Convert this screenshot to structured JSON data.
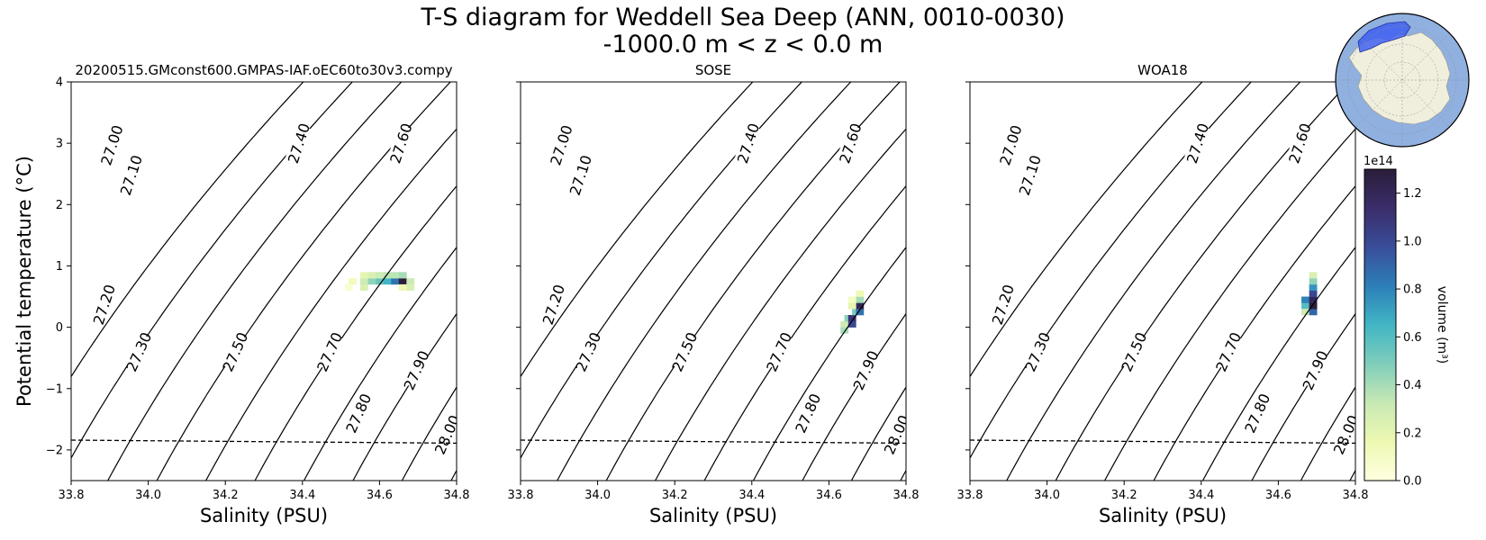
{
  "title": {
    "line1": "T-S diagram for Weddell Sea Deep (ANN, 0010-0030)",
    "line2": "-1000.0 m < z < 0.0 m"
  },
  "colorbar": {
    "label": "volume (m³)",
    "exponent_label": "1e14",
    "ticks": [
      "0.0",
      "0.2",
      "0.4",
      "0.6",
      "0.8",
      "1.0",
      "1.2"
    ],
    "tick_values": [
      0.0,
      0.2,
      0.4,
      0.6,
      0.8,
      1.0,
      1.2
    ],
    "range": [
      0,
      1.3
    ],
    "colors": [
      "#ffffe0",
      "#edf8b1",
      "#c7e9b4",
      "#7fcdbb",
      "#41b6c4",
      "#2c7fb8",
      "#3a4d9a",
      "#3b2d6a",
      "#2a1e3a"
    ]
  },
  "inset_map": {
    "ocean_color": "#90b0e0",
    "land_color": "#f0eedc",
    "region_color": "#4060f0"
  },
  "chart_data": [
    {
      "type": "heatmap",
      "title": "20200515.GMconst600.GMPAS-IAF.oEC60to30v3.compy",
      "xlabel": "Salinity (PSU)",
      "ylabel": "Potential temperature (°C)",
      "xlim": [
        33.8,
        34.8
      ],
      "ylim": [
        -2.5,
        4
      ],
      "xticks": [
        "33.8",
        "34.0",
        "34.2",
        "34.4",
        "34.6",
        "34.8"
      ],
      "yticks": [
        "−2",
        "−1",
        "0",
        "1",
        "2",
        "3",
        "4"
      ],
      "freezing_line": {
        "x": [
          33.8,
          34.8
        ],
        "y": [
          -1.84,
          -1.89
        ]
      },
      "density_contours": [
        {
          "label": "27.00",
          "label_at": [
            33.905,
            2.97
          ]
        },
        {
          "label": "27.10",
          "label_at": [
            33.955,
            2.48
          ]
        },
        {
          "label": "27.20",
          "label_at": [
            33.885,
            0.37
          ]
        },
        {
          "label": "27.30",
          "label_at": [
            33.975,
            -0.4
          ]
        },
        {
          "label": "27.40",
          "label_at": [
            34.39,
            3.0
          ]
        },
        {
          "label": "27.50",
          "label_at": [
            34.225,
            -0.4
          ]
        },
        {
          "label": "27.60",
          "label_at": [
            34.655,
            3.0
          ]
        },
        {
          "label": "27.70",
          "label_at": [
            34.47,
            -0.4
          ]
        },
        {
          "label": "27.80",
          "label_at": [
            34.545,
            -1.4
          ]
        },
        {
          "label": "27.90",
          "label_at": [
            34.695,
            -0.7
          ]
        },
        {
          "label": "28.00",
          "label_at": [
            34.775,
            -1.75
          ]
        }
      ],
      "cells": [
        {
          "x": 34.52,
          "y": 0.65,
          "v": 0.05
        },
        {
          "x": 34.53,
          "y": 0.75,
          "v": 0.12
        },
        {
          "x": 34.56,
          "y": 0.65,
          "v": 0.25
        },
        {
          "x": 34.56,
          "y": 0.75,
          "v": 0.3
        },
        {
          "x": 34.56,
          "y": 0.85,
          "v": 0.2
        },
        {
          "x": 34.58,
          "y": 0.75,
          "v": 0.45
        },
        {
          "x": 34.58,
          "y": 0.85,
          "v": 0.25
        },
        {
          "x": 34.6,
          "y": 0.75,
          "v": 0.55
        },
        {
          "x": 34.6,
          "y": 0.85,
          "v": 0.3
        },
        {
          "x": 34.62,
          "y": 0.75,
          "v": 0.65
        },
        {
          "x": 34.62,
          "y": 0.85,
          "v": 0.35
        },
        {
          "x": 34.64,
          "y": 0.75,
          "v": 0.85
        },
        {
          "x": 34.64,
          "y": 0.85,
          "v": 0.35
        },
        {
          "x": 34.66,
          "y": 0.75,
          "v": 1.3
        },
        {
          "x": 34.66,
          "y": 0.85,
          "v": 0.4
        },
        {
          "x": 34.68,
          "y": 0.75,
          "v": 0.3
        },
        {
          "x": 34.68,
          "y": 0.65,
          "v": 0.25
        },
        {
          "x": 34.66,
          "y": 0.65,
          "v": 0.15
        }
      ]
    },
    {
      "type": "heatmap",
      "title": "SOSE",
      "xlabel": "Salinity (PSU)",
      "ylabel": "",
      "xlim": [
        33.8,
        34.8
      ],
      "ylim": [
        -2.5,
        4
      ],
      "xticks": [
        "33.8",
        "34.0",
        "34.2",
        "34.4",
        "34.6",
        "34.8"
      ],
      "yticks": [
        "",
        "",
        "",
        "",
        "",
        "",
        ""
      ],
      "freezing_line": {
        "x": [
          33.8,
          34.8
        ],
        "y": [
          -1.84,
          -1.89
        ]
      },
      "density_contours": [
        {
          "label": "27.00",
          "label_at": [
            33.905,
            2.97
          ]
        },
        {
          "label": "27.10",
          "label_at": [
            33.955,
            2.48
          ]
        },
        {
          "label": "27.20",
          "label_at": [
            33.885,
            0.37
          ]
        },
        {
          "label": "27.30",
          "label_at": [
            33.975,
            -0.4
          ]
        },
        {
          "label": "27.40",
          "label_at": [
            34.39,
            3.0
          ]
        },
        {
          "label": "27.50",
          "label_at": [
            34.225,
            -0.4
          ]
        },
        {
          "label": "27.60",
          "label_at": [
            34.655,
            3.0
          ]
        },
        {
          "label": "27.70",
          "label_at": [
            34.47,
            -0.4
          ]
        },
        {
          "label": "27.80",
          "label_at": [
            34.545,
            -1.4
          ]
        },
        {
          "label": "27.90",
          "label_at": [
            34.695,
            -0.7
          ]
        },
        {
          "label": "28.00",
          "label_at": [
            34.775,
            -1.75
          ]
        }
      ],
      "cells": [
        {
          "x": 34.64,
          "y": 0.05,
          "v": 0.3
        },
        {
          "x": 34.64,
          "y": -0.05,
          "v": 0.4
        },
        {
          "x": 34.65,
          "y": 0.15,
          "v": 0.45
        },
        {
          "x": 34.66,
          "y": 0.05,
          "v": 1.0
        },
        {
          "x": 34.66,
          "y": 0.15,
          "v": 1.1
        },
        {
          "x": 34.67,
          "y": 0.25,
          "v": 0.5
        },
        {
          "x": 34.68,
          "y": 0.25,
          "v": 0.85
        },
        {
          "x": 34.68,
          "y": 0.35,
          "v": 1.2
        },
        {
          "x": 34.68,
          "y": 0.45,
          "v": 0.4
        },
        {
          "x": 34.68,
          "y": 0.55,
          "v": 0.15
        },
        {
          "x": 34.66,
          "y": 0.35,
          "v": 0.2
        },
        {
          "x": 34.66,
          "y": 0.45,
          "v": 0.1
        }
      ]
    },
    {
      "type": "heatmap",
      "title": "WOA18",
      "xlabel": "Salinity (PSU)",
      "ylabel": "",
      "xlim": [
        33.8,
        34.8
      ],
      "ylim": [
        -2.5,
        4
      ],
      "xticks": [
        "33.8",
        "34.0",
        "34.2",
        "34.4",
        "34.6",
        "34.8"
      ],
      "yticks": [
        "",
        "",
        "",
        "",
        "",
        "",
        ""
      ],
      "freezing_line": {
        "x": [
          33.8,
          34.8
        ],
        "y": [
          -1.84,
          -1.89
        ]
      },
      "density_contours": [
        {
          "label": "27.00",
          "label_at": [
            33.905,
            2.97
          ]
        },
        {
          "label": "27.10",
          "label_at": [
            33.955,
            2.48
          ]
        },
        {
          "label": "27.20",
          "label_at": [
            33.885,
            0.37
          ]
        },
        {
          "label": "27.30",
          "label_at": [
            33.975,
            -0.4
          ]
        },
        {
          "label": "27.40",
          "label_at": [
            34.39,
            3.0
          ]
        },
        {
          "label": "27.50",
          "label_at": [
            34.225,
            -0.4
          ]
        },
        {
          "label": "27.60",
          "label_at": [
            34.655,
            3.0
          ]
        },
        {
          "label": "27.70",
          "label_at": [
            34.47,
            -0.4
          ]
        },
        {
          "label": "27.80",
          "label_at": [
            34.545,
            -1.4
          ]
        },
        {
          "label": "27.90",
          "label_at": [
            34.695,
            -0.7
          ]
        },
        {
          "label": "28.00",
          "label_at": [
            34.775,
            -1.75
          ]
        }
      ],
      "cells": [
        {
          "x": 34.67,
          "y": 0.35,
          "v": 0.6
        },
        {
          "x": 34.67,
          "y": 0.45,
          "v": 0.8
        },
        {
          "x": 34.67,
          "y": 0.25,
          "v": 0.3
        },
        {
          "x": 34.69,
          "y": 0.25,
          "v": 0.9
        },
        {
          "x": 34.69,
          "y": 0.35,
          "v": 1.3
        },
        {
          "x": 34.69,
          "y": 0.45,
          "v": 1.2
        },
        {
          "x": 34.69,
          "y": 0.55,
          "v": 1.0
        },
        {
          "x": 34.69,
          "y": 0.65,
          "v": 0.75
        },
        {
          "x": 34.69,
          "y": 0.75,
          "v": 0.45
        },
        {
          "x": 34.69,
          "y": 0.85,
          "v": 0.25
        }
      ]
    }
  ]
}
